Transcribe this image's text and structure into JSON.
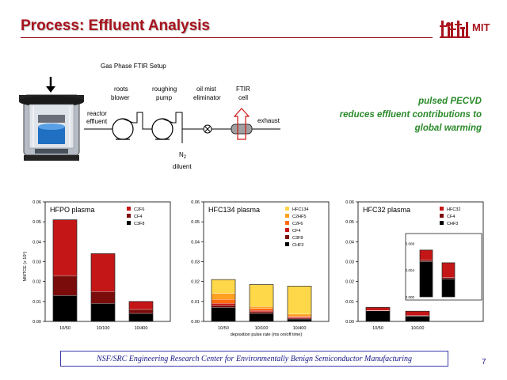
{
  "header": {
    "title": "Process: Effluent Analysis",
    "logo_text": "MIT",
    "accent_color": "#a8141e"
  },
  "diagram": {
    "title": "Gas Phase FTIR Setup",
    "labels": {
      "reactor": "reactor",
      "effluent": "effluent",
      "roots": "roots",
      "blower": "blower",
      "roughing": "roughing",
      "pump": "pump",
      "oilmist": "oil mist",
      "eliminator": "eliminator",
      "ftir": "FTIR",
      "cell": "cell",
      "exhaust": "exhaust",
      "n2": "N",
      "n2_sub": "2",
      "diluent": "diluent"
    }
  },
  "callout": {
    "lines": [
      "pulsed PECVD",
      "reduces effluent contributions to",
      "global warming"
    ],
    "color": "#2a8a2a"
  },
  "charts": {
    "ylabel": "MMTCE (x 10⁶)",
    "xlabel": "deposition pulse rate (ms on/off time)",
    "yticks": [
      "0.00",
      "0.01",
      "0.02",
      "0.03",
      "0.04",
      "0.05",
      "0.06"
    ],
    "inset_yticks": [
      "0.000",
      "0.004",
      "0.008"
    ]
  },
  "chart_data": [
    {
      "type": "bar",
      "stacked": true,
      "title": "HFPO plasma",
      "categories": [
        "10/50",
        "10/100",
        "10/400"
      ],
      "ylim": [
        0,
        0.06
      ],
      "series": [
        {
          "name": "C2F6",
          "color": "#c41616",
          "values": [
            0.028,
            0.019,
            0.004
          ]
        },
        {
          "name": "CF4",
          "color": "#7a0c0c",
          "values": [
            0.01,
            0.006,
            0.002
          ]
        },
        {
          "name": "C3F8",
          "color": "#000000",
          "values": [
            0.013,
            0.009,
            0.004
          ]
        }
      ]
    },
    {
      "type": "bar",
      "stacked": true,
      "title": "HFC134 plasma",
      "categories": [
        "10/50",
        "10/100",
        "10/400"
      ],
      "ylim": [
        0,
        0.06
      ],
      "series": [
        {
          "name": "HFC134",
          "color": "#ffd84a",
          "values": [
            0.007,
            0.011,
            0.014
          ]
        },
        {
          "name": "C2HF5",
          "color": "#ffa020",
          "values": [
            0.003,
            0.001,
            0.001
          ]
        },
        {
          "name": "C2F6",
          "color": "#ff6a10",
          "values": [
            0.002,
            0.001,
            0.0005
          ]
        },
        {
          "name": "CF4",
          "color": "#c41616",
          "values": [
            0.001,
            0.0007,
            0.0005
          ]
        },
        {
          "name": "C3F8",
          "color": "#7a0c0c",
          "values": [
            0.001,
            0.0008,
            0.0005
          ]
        },
        {
          "name": "CHF3",
          "color": "#000000",
          "values": [
            0.007,
            0.004,
            0.0012
          ]
        }
      ]
    },
    {
      "type": "bar",
      "stacked": true,
      "title": "HFC32 plasma",
      "categories": [
        "10/50",
        "10/100"
      ],
      "ylim": [
        0,
        0.06
      ],
      "series": [
        {
          "name": "HFC32",
          "color": "#c41616",
          "values": [
            0.0015,
            0.0022
          ]
        },
        {
          "name": "CF4",
          "color": "#7a0c0c",
          "values": [
            0.0002,
            0.0002
          ]
        },
        {
          "name": "CHF3",
          "color": "#000000",
          "values": [
            0.0053,
            0.0027
          ]
        }
      ],
      "inset": {
        "ylim": [
          0,
          0.009
        ]
      }
    }
  ],
  "footer": {
    "text": "NSF/SRC Engineering Research Center for Environmentally Benign Semiconductor Manufacturing",
    "page": "7"
  }
}
